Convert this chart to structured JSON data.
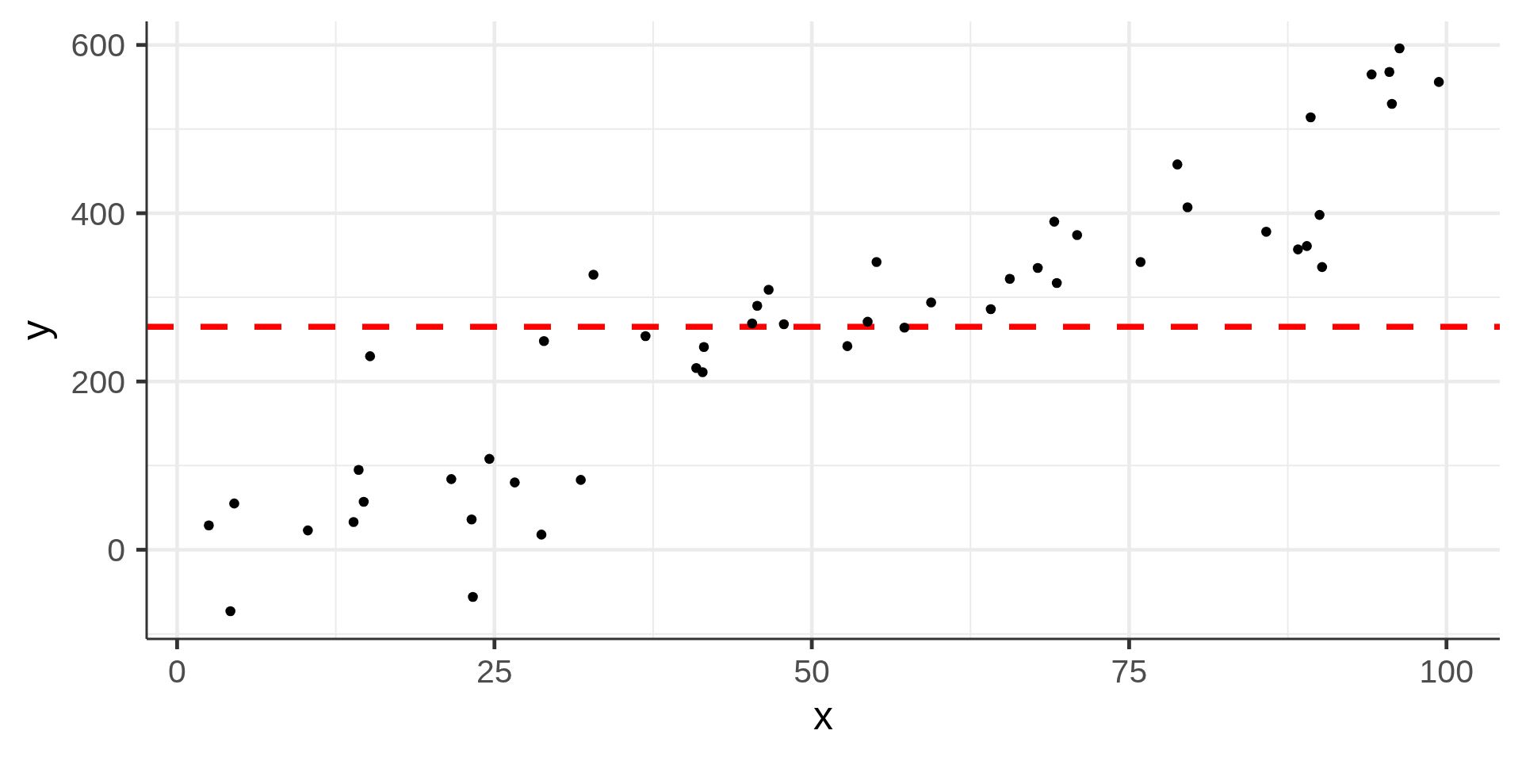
{
  "chart_data": {
    "type": "scatter",
    "xlabel": "x",
    "ylabel": "y",
    "x": [
      2.5,
      4.2,
      4.5,
      10.3,
      13.9,
      14.3,
      14.7,
      15.2,
      21.6,
      23.2,
      23.3,
      24.6,
      26.6,
      28.7,
      28.9,
      31.8,
      32.8,
      36.9,
      40.9,
      41.4,
      41.5,
      45.3,
      45.7,
      46.6,
      47.8,
      52.8,
      54.4,
      55.1,
      57.3,
      59.4,
      64.1,
      65.6,
      67.8,
      69.1,
      69.3,
      70.9,
      75.9,
      78.8,
      79.6,
      85.8,
      88.3,
      89.0,
      89.3,
      90.0,
      90.2,
      94.1,
      95.5,
      95.7,
      96.3,
      99.4
    ],
    "values": [
      29,
      -73,
      55,
      23,
      33,
      95,
      57,
      230,
      84,
      36,
      -56,
      108,
      80,
      18,
      248,
      83,
      327,
      254,
      216,
      211,
      241,
      269,
      290,
      309,
      268,
      242,
      271,
      342,
      264,
      294,
      286,
      322,
      335,
      390,
      317,
      374,
      342,
      458,
      407,
      378,
      357,
      361,
      514,
      398,
      336,
      565,
      568,
      530,
      596,
      556
    ],
    "color": "#000000",
    "marker": "circle",
    "xlim": [
      -2.4,
      104.2
    ],
    "ylim": [
      -106,
      628
    ],
    "xticks": [
      0,
      25,
      50,
      75,
      100
    ],
    "yticks": [
      0,
      200,
      400,
      600
    ],
    "grid": true,
    "ref_lines": [
      {
        "axis": "y",
        "value": 265,
        "color": "#ff0000",
        "line_style": "dashed"
      }
    ]
  }
}
